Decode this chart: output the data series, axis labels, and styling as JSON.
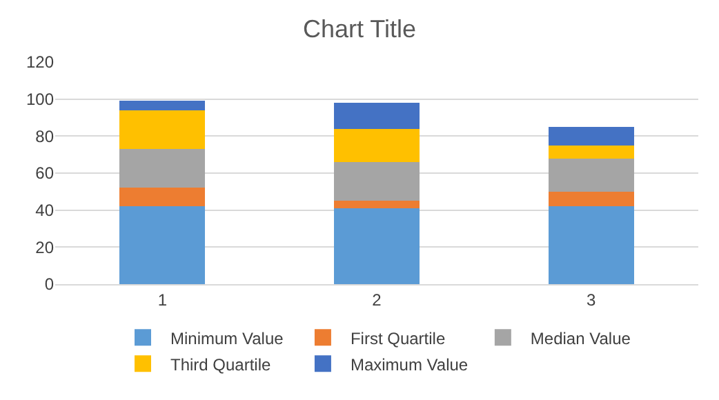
{
  "chart_data": {
    "type": "bar",
    "title": "Chart Title",
    "stacked": true,
    "categories": [
      "1",
      "2",
      "3"
    ],
    "series": [
      {
        "name": "Minimum Value",
        "color": "#5b9bd5",
        "values": [
          42,
          41,
          42
        ]
      },
      {
        "name": "First Quartile",
        "color": "#ed7d31",
        "values": [
          10,
          4,
          8
        ]
      },
      {
        "name": "Median Value",
        "color": "#a5a5a5",
        "values": [
          21,
          21,
          18
        ]
      },
      {
        "name": "Third Quartile",
        "color": "#ffc000",
        "values": [
          21,
          18,
          7
        ]
      },
      {
        "name": "Maximum Value",
        "color": "#4472c4",
        "values": [
          5,
          14,
          10
        ]
      }
    ],
    "ylim": [
      0,
      120
    ],
    "yticks": [
      0,
      20,
      40,
      60,
      80,
      100,
      120
    ],
    "grid": "y",
    "legend": "bottom"
  }
}
